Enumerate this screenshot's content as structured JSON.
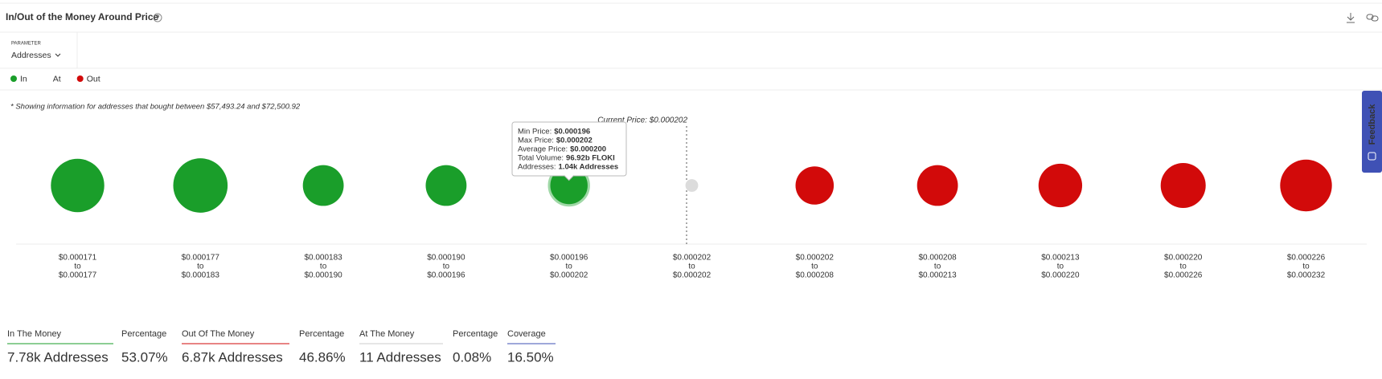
{
  "header": {
    "title": "In/Out of the Money Around Price"
  },
  "parameter": {
    "label": "PARAMETER",
    "value": "Addresses"
  },
  "note": "* Showing information for addresses that bought between $57,493.24 and $72,500.92",
  "chart_data": {
    "type": "bubble",
    "current_price_label": "Current Price: $0.000202",
    "range_from": [
      "$0.000171",
      "$0.000177",
      "$0.000183",
      "$0.000190",
      "$0.000196",
      "$0.000202",
      "$0.000202",
      "$0.000208",
      "$0.000213",
      "$0.000220",
      "$0.000226"
    ],
    "range_separator": "to",
    "range_to": [
      "$0.000177",
      "$0.000183",
      "$0.000190",
      "$0.000196",
      "$0.000202",
      "$0.000202",
      "$0.000208",
      "$0.000213",
      "$0.000220",
      "$0.000226",
      "$0.000232"
    ],
    "series": [
      {
        "name": "In",
        "color": "#1a9e2a",
        "values": [
          2200,
          2300,
          1120,
          1120,
          1040,
          null,
          null,
          null,
          null,
          null,
          null
        ]
      },
      {
        "name": "At",
        "color": "#dcdcdc",
        "values": [
          null,
          null,
          null,
          null,
          null,
          11,
          null,
          null,
          null,
          null,
          null
        ]
      },
      {
        "name": "Out",
        "color": "#d20a0a",
        "values": [
          null,
          null,
          null,
          null,
          null,
          null,
          940,
          1120,
          1330,
          1440,
          2040
        ]
      }
    ],
    "tooltip": {
      "index": 4,
      "rows": [
        [
          "Min Price:",
          "$0.000196"
        ],
        [
          "Max Price:",
          "$0.000202"
        ],
        [
          "Average Price:",
          "$0.000200"
        ],
        [
          "Total Volume:",
          "96.92b FLOKI"
        ],
        [
          "Addresses:",
          "1.04k Addresses"
        ]
      ]
    }
  },
  "summary": [
    {
      "label": "In The Money",
      "value": "7.78k Addresses"
    },
    {
      "label": "Percentage",
      "value": "53.07%"
    },
    {
      "label": "Out Of The Money",
      "value": "6.87k Addresses"
    },
    {
      "label": "Percentage",
      "value": "46.86%"
    },
    {
      "label": "At The Money",
      "value": "11 Addresses"
    },
    {
      "label": "Percentage",
      "value": "0.08%"
    },
    {
      "label": "Coverage",
      "value": "16.50%"
    }
  ],
  "feedback": "Feedback"
}
